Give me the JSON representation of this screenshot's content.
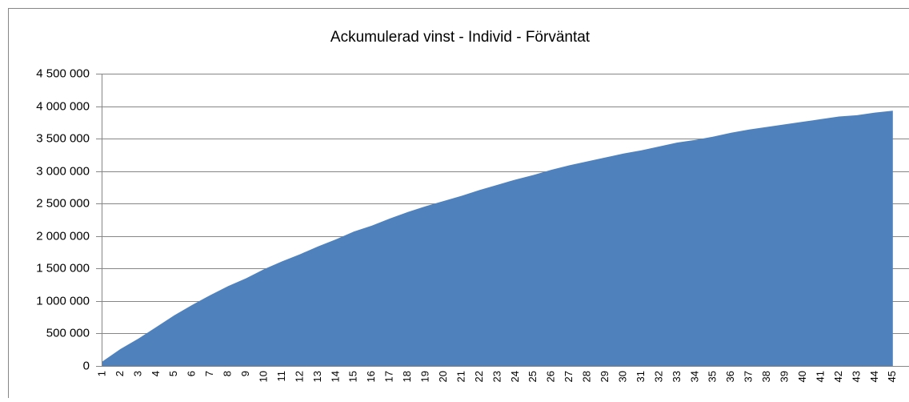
{
  "chart_data": {
    "type": "area",
    "title": "Ackumulerad vinst -  Individ - Förväntat",
    "categories": [
      "1",
      "2",
      "3",
      "4",
      "5",
      "6",
      "7",
      "8",
      "9",
      "10",
      "11",
      "12",
      "13",
      "14",
      "15",
      "16",
      "17",
      "18",
      "19",
      "20",
      "21",
      "22",
      "23",
      "24",
      "25",
      "26",
      "27",
      "28",
      "29",
      "30",
      "31",
      "32",
      "33",
      "34",
      "35",
      "36",
      "37",
      "38",
      "39",
      "40",
      "41",
      "42",
      "43",
      "44",
      "45"
    ],
    "values": [
      70000,
      260000,
      420000,
      600000,
      780000,
      940000,
      1090000,
      1230000,
      1350000,
      1490000,
      1610000,
      1720000,
      1840000,
      1950000,
      2070000,
      2160000,
      2270000,
      2370000,
      2460000,
      2540000,
      2620000,
      2710000,
      2790000,
      2870000,
      2940000,
      3020000,
      3090000,
      3150000,
      3210000,
      3270000,
      3320000,
      3380000,
      3440000,
      3480000,
      3530000,
      3590000,
      3640000,
      3680000,
      3720000,
      3760000,
      3800000,
      3840000,
      3860000,
      3900000,
      3930000
    ],
    "color": "#4f81bd",
    "ylim": [
      0,
      4500000
    ],
    "yticks": [
      0,
      {
        "value": 500000,
        "label": "500 000"
      },
      {
        "value": 1000000,
        "label": "1 000 000"
      },
      {
        "value": 1500000,
        "label": "1 500 000"
      },
      {
        "value": 2000000,
        "label": "2 000 000"
      },
      {
        "value": 2500000,
        "label": "2 500 000"
      },
      {
        "value": 3000000,
        "label": "3 000 000"
      },
      {
        "value": 3500000,
        "label": "3 500 000"
      },
      {
        "value": 4000000,
        "label": "4 000 000"
      },
      {
        "value": 4500000,
        "label": "4 500 000"
      }
    ],
    "grid": true
  }
}
